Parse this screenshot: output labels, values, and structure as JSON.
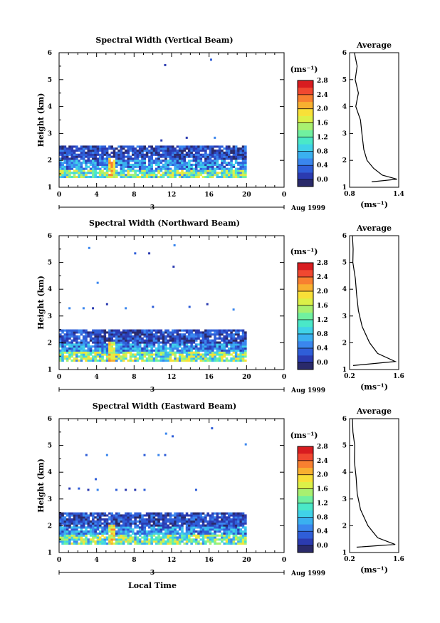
{
  "colorscale": [
    "#2a2a6a",
    "#2b3bb0",
    "#2f5ed8",
    "#3a86ee",
    "#3ab0f0",
    "#40d2e8",
    "#4ae8c8",
    "#70f0a0",
    "#a8f070",
    "#dcf048",
    "#f8e038",
    "#f8b030",
    "#f88030",
    "#f04830",
    "#d81c20"
  ],
  "chart_data": [
    {
      "type": "heatmap",
      "title": "Spectral Width (Vertical Beam)",
      "ylabel": "Height (km)",
      "ylim": [
        1,
        6
      ],
      "yticks": [
        "1",
        "2",
        "3",
        "4",
        "5",
        "6"
      ],
      "xlim": [
        0,
        24
      ],
      "xticks": [
        "0",
        "4",
        "8",
        "12",
        "16",
        "20",
        "0"
      ],
      "date_day": "3",
      "date_label": "Aug 1999",
      "colorbar": {
        "unit": "(ms⁻¹)",
        "ticks": [
          "0.0",
          "0.4",
          "0.8",
          "1.2",
          "1.6",
          "2.0",
          "2.4",
          "2.8"
        ],
        "range": [
          0,
          3.0
        ]
      },
      "data_extent": {
        "x": [
          0,
          20
        ],
        "y": [
          1.35,
          2.5
        ]
      },
      "average": {
        "title": "Average",
        "xlabel": "(ms⁻¹)",
        "xticks": [
          "0.8",
          "1.4"
        ],
        "xlim": [
          0.8,
          1.4
        ],
        "profile": [
          [
            1.07,
            1.2
          ],
          [
            1.38,
            1.3
          ],
          [
            1.2,
            1.45
          ],
          [
            1.1,
            1.7
          ],
          [
            1.02,
            2.0
          ],
          [
            0.97,
            2.4
          ],
          [
            0.95,
            3.0
          ],
          [
            0.92,
            3.5
          ],
          [
            0.88,
            4.0
          ],
          [
            0.9,
            4.5
          ],
          [
            0.86,
            5.0
          ],
          [
            0.88,
            5.5
          ],
          [
            0.85,
            6.0
          ]
        ]
      }
    },
    {
      "type": "heatmap",
      "title": "Spectral Width (Northward Beam)",
      "ylabel": "Height (km)",
      "ylim": [
        1,
        6
      ],
      "yticks": [
        "1",
        "2",
        "3",
        "4",
        "5",
        "6"
      ],
      "xlim": [
        0,
        24
      ],
      "xticks": [
        "0",
        "4",
        "8",
        "12",
        "16",
        "20",
        "0"
      ],
      "date_day": "3",
      "date_label": "Aug 1999",
      "colorbar": {
        "unit": "(ms⁻¹)",
        "ticks": [
          "0.0",
          "0.4",
          "0.8",
          "1.2",
          "1.6",
          "2.0",
          "2.4",
          "2.8"
        ],
        "range": [
          0,
          3.0
        ]
      },
      "data_extent": {
        "x": [
          0,
          20
        ],
        "y": [
          1.3,
          2.5
        ]
      },
      "average": {
        "title": "Average",
        "xlabel": "(ms⁻¹)",
        "xticks": [
          "0.2",
          "1.6"
        ],
        "xlim": [
          0.2,
          1.6
        ],
        "profile": [
          [
            0.3,
            1.15
          ],
          [
            1.5,
            1.3
          ],
          [
            1.0,
            1.6
          ],
          [
            0.75,
            2.0
          ],
          [
            0.55,
            2.6
          ],
          [
            0.45,
            3.2
          ],
          [
            0.38,
            3.8
          ],
          [
            0.35,
            4.4
          ],
          [
            0.32,
            5.0
          ],
          [
            0.3,
            5.5
          ],
          [
            0.28,
            6.0
          ]
        ]
      }
    },
    {
      "type": "heatmap",
      "title": "Spectral Width (Eastward Beam)",
      "ylabel": "Height (km)",
      "xlabel": "Local Time",
      "ylim": [
        1,
        6
      ],
      "yticks": [
        "1",
        "2",
        "3",
        "4",
        "5",
        "6"
      ],
      "xlim": [
        0,
        24
      ],
      "xticks": [
        "0",
        "4",
        "8",
        "12",
        "16",
        "20",
        "0"
      ],
      "date_day": "3",
      "date_label": "Aug 1999",
      "colorbar": {
        "unit": "(ms⁻¹)",
        "ticks": [
          "0.0",
          "0.4",
          "0.8",
          "1.2",
          "1.6",
          "2.0",
          "2.4",
          "2.8"
        ],
        "range": [
          0,
          3.0
        ]
      },
      "data_extent": {
        "x": [
          0,
          20
        ],
        "y": [
          1.3,
          2.5
        ]
      },
      "average": {
        "title": "Average",
        "xlabel": "(ms⁻¹)",
        "xticks": [
          "0.2",
          "1.6"
        ],
        "xlim": [
          0.2,
          1.6
        ],
        "profile": [
          [
            0.4,
            1.2
          ],
          [
            1.5,
            1.3
          ],
          [
            1.0,
            1.55
          ],
          [
            0.7,
            2.0
          ],
          [
            0.5,
            2.6
          ],
          [
            0.42,
            3.2
          ],
          [
            0.38,
            3.8
          ],
          [
            0.34,
            4.4
          ],
          [
            0.32,
            5.0
          ],
          [
            0.3,
            5.5
          ],
          [
            0.28,
            6.0
          ]
        ]
      }
    }
  ]
}
